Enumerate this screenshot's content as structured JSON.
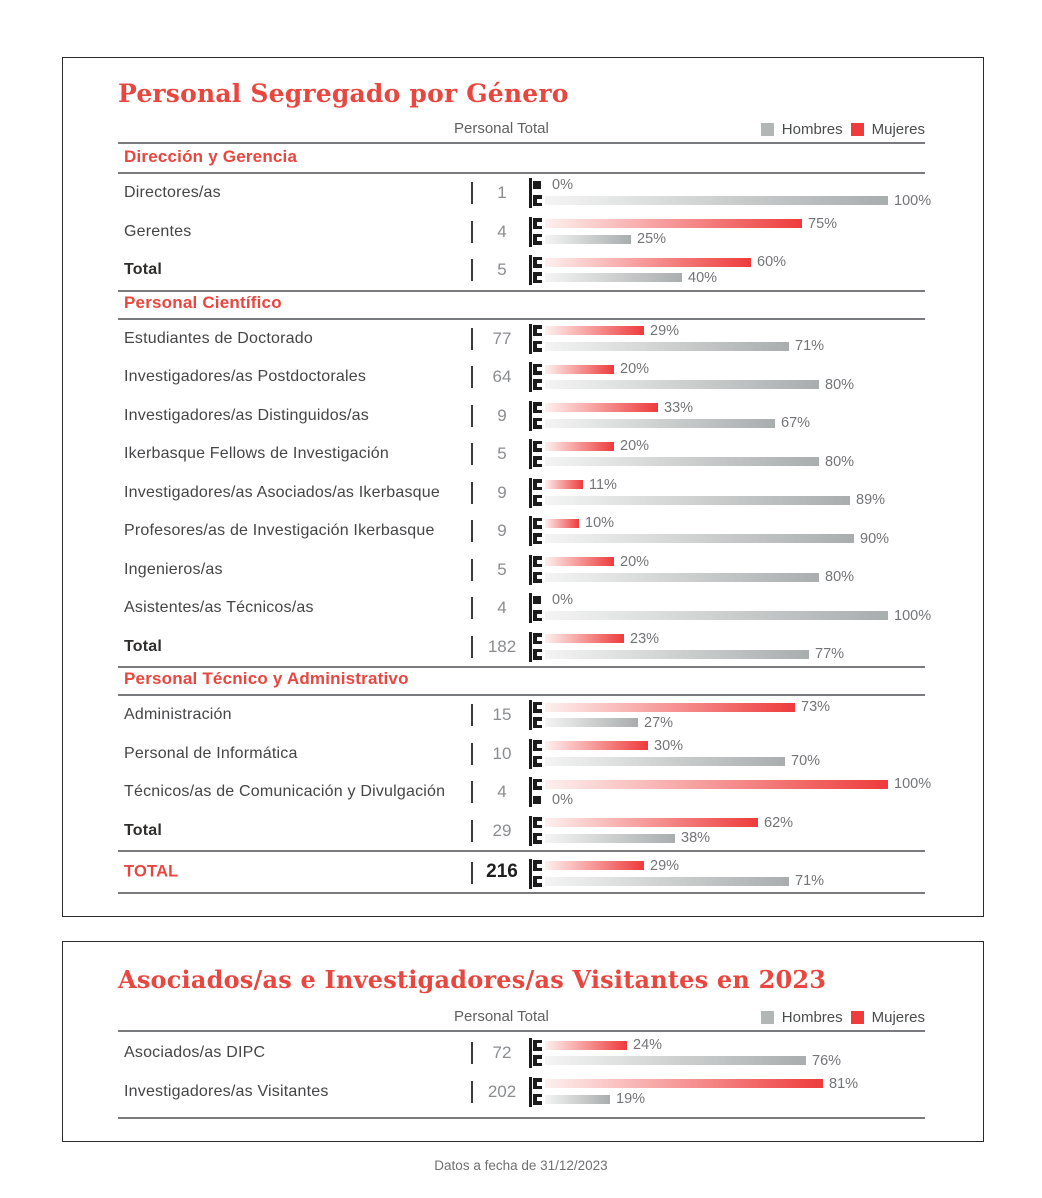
{
  "footer": {
    "text": "Datos a fecha de 31/12/2023"
  },
  "colors": {
    "mujeres": "#ee3b3c",
    "hombres": "#a9adad",
    "accent_text": "#e8463f"
  },
  "chart_data": [
    {
      "type": "bar",
      "orientation": "horizontal",
      "unit": "%",
      "title": "Personal Segregado por Género",
      "col_label": "Personal Total",
      "legend": [
        "Hombres",
        "Mujeres"
      ],
      "xlim": [
        0,
        100
      ],
      "sections": [
        {
          "title": "Dirección y Gerencia",
          "rows": [
            {
              "label": "Directores/as",
              "total": "1",
              "mujeres": 0,
              "hombres": 100
            },
            {
              "label": "Gerentes",
              "total": "4",
              "mujeres": 75,
              "hombres": 25
            },
            {
              "label": "Total",
              "total": "5",
              "mujeres": 60,
              "hombres": 40,
              "bold": true
            }
          ]
        },
        {
          "title": "Personal Científico",
          "rows": [
            {
              "label": "Estudiantes de Doctorado",
              "total": "77",
              "mujeres": 29,
              "hombres": 71
            },
            {
              "label": "Investigadores/as Postdoctorales",
              "total": "64",
              "mujeres": 20,
              "hombres": 80
            },
            {
              "label": "Investigadores/as Distinguidos/as",
              "total": "9",
              "mujeres": 33,
              "hombres": 67
            },
            {
              "label": "Ikerbasque Fellows de Investigación",
              "total": "5",
              "mujeres": 20,
              "hombres": 80
            },
            {
              "label": "Investigadores/as Asociados/as Ikerbasque",
              "total": "9",
              "mujeres": 11,
              "hombres": 89
            },
            {
              "label": "Profesores/as de Investigación Ikerbasque",
              "total": "9",
              "mujeres": 10,
              "hombres": 90
            },
            {
              "label": "Ingenieros/as",
              "total": "5",
              "mujeres": 20,
              "hombres": 80
            },
            {
              "label": "Asistentes/as Técnicos/as",
              "total": "4",
              "mujeres": 0,
              "hombres": 100
            },
            {
              "label": "Total",
              "total": "182",
              "mujeres": 23,
              "hombres": 77,
              "bold": true
            }
          ]
        },
        {
          "title": "Personal Técnico y Administrativo",
          "rows": [
            {
              "label": "Administración",
              "total": "15",
              "mujeres": 73,
              "hombres": 27
            },
            {
              "label": "Personal de Informática",
              "total": "10",
              "mujeres": 30,
              "hombres": 70
            },
            {
              "label": "Técnicos/as de Comunicación y Divulgación",
              "total": "4",
              "mujeres": 100,
              "hombres": 0
            },
            {
              "label": "Total",
              "total": "29",
              "mujeres": 62,
              "hombres": 38,
              "bold": true
            }
          ]
        }
      ],
      "grand_total": {
        "label": "TOTAL",
        "total": "216",
        "mujeres": 29,
        "hombres": 71
      }
    },
    {
      "type": "bar",
      "orientation": "horizontal",
      "unit": "%",
      "title": "Asociados/as e Investigadores/as Visitantes en 2023",
      "col_label": "Personal Total",
      "legend": [
        "Hombres",
        "Mujeres"
      ],
      "xlim": [
        0,
        100
      ],
      "sections": [
        {
          "title": null,
          "rows": [
            {
              "label": "Asociados/as DIPC",
              "total": "72",
              "mujeres": 24,
              "hombres": 76
            },
            {
              "label": "Investigadores/as Visitantes",
              "total": "202",
              "mujeres": 81,
              "hombres": 19
            }
          ]
        }
      ]
    }
  ]
}
